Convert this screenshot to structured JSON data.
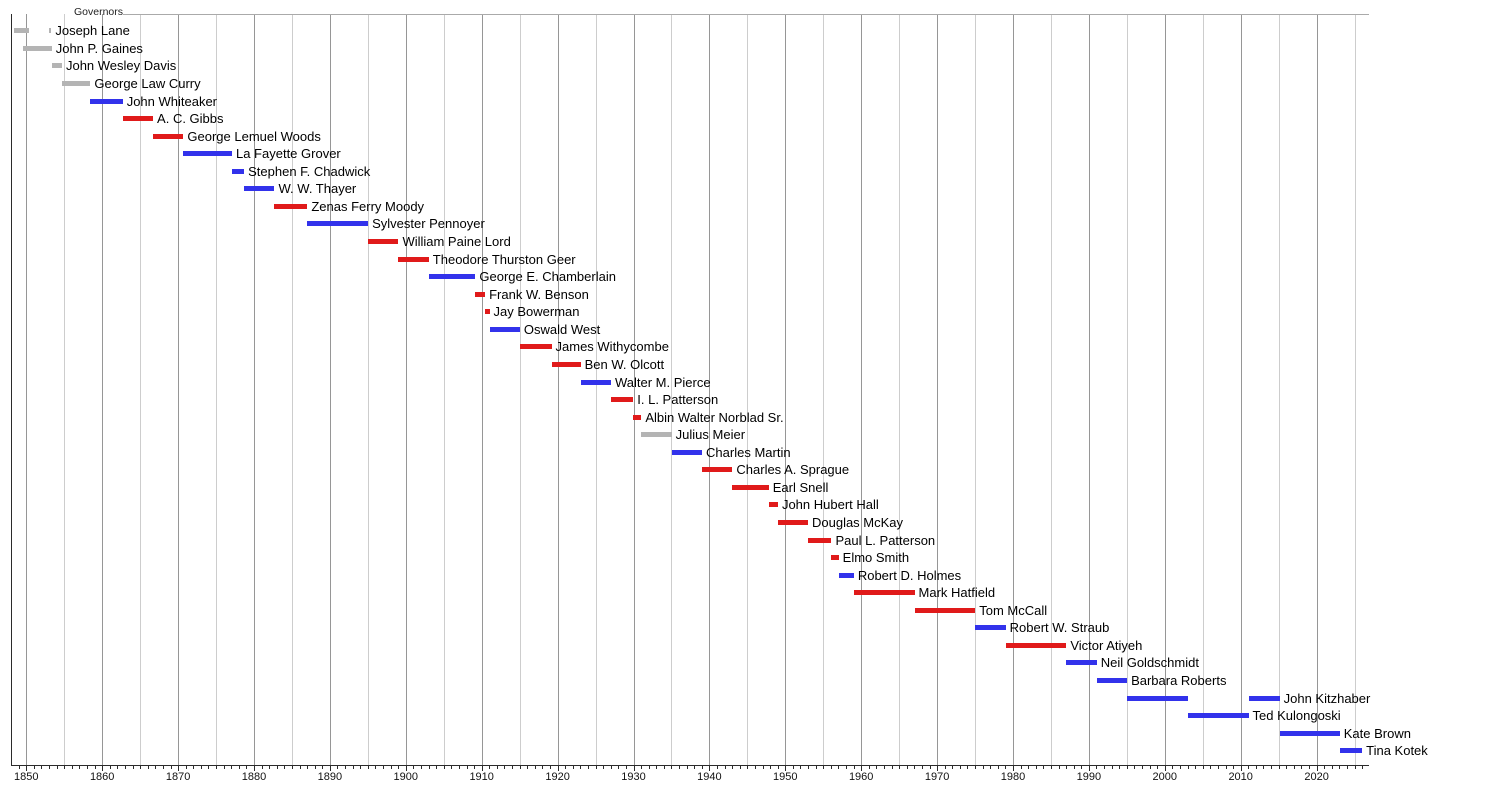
{
  "chart_data": {
    "type": "timeline",
    "title": "Governors",
    "x_axis": {
      "min_year": 1848,
      "max_year": 2027,
      "grid_interval_years": 5,
      "tick_label_years": [
        1850,
        1860,
        1870,
        1880,
        1890,
        1900,
        1910,
        1920,
        1930,
        1940,
        1950,
        1960,
        1970,
        1980,
        1990,
        2000,
        2010,
        2020
      ]
    },
    "legend_note": "bar color encodes party",
    "governors": [
      {
        "name": "Joseph Lane",
        "party": "unaffiliated",
        "terms": [
          [
            1848.35,
            1850.3
          ],
          [
            1853.0,
            1853.3
          ]
        ]
      },
      {
        "name": "John P. Gaines",
        "party": "unaffiliated",
        "terms": [
          [
            1849.6,
            1853.35
          ]
        ]
      },
      {
        "name": "John Wesley Davis",
        "party": "unaffiliated",
        "terms": [
          [
            1853.35,
            1854.7
          ]
        ]
      },
      {
        "name": "George Law Curry",
        "party": "unaffiliated",
        "terms": [
          [
            1854.7,
            1858.45
          ]
        ]
      },
      {
        "name": "John Whiteaker",
        "party": "democratic",
        "terms": [
          [
            1858.45,
            1862.7
          ]
        ]
      },
      {
        "name": "A. C. Gibbs",
        "party": "republican",
        "terms": [
          [
            1862.7,
            1866.7
          ]
        ]
      },
      {
        "name": "George Lemuel Woods",
        "party": "republican",
        "terms": [
          [
            1866.7,
            1870.7
          ]
        ]
      },
      {
        "name": "La Fayette Grover",
        "party": "democratic",
        "terms": [
          [
            1870.7,
            1877.1
          ]
        ]
      },
      {
        "name": "Stephen F. Chadwick",
        "party": "democratic",
        "terms": [
          [
            1877.1,
            1878.7
          ]
        ]
      },
      {
        "name": "W. W. Thayer",
        "party": "democratic",
        "terms": [
          [
            1878.7,
            1882.7
          ]
        ]
      },
      {
        "name": "Zenas Ferry Moody",
        "party": "republican",
        "terms": [
          [
            1882.7,
            1887.03
          ]
        ]
      },
      {
        "name": "Sylvester Pennoyer",
        "party": "democratic",
        "terms": [
          [
            1887.03,
            1895.03
          ]
        ]
      },
      {
        "name": "William Paine Lord",
        "party": "republican",
        "terms": [
          [
            1895.03,
            1899.03
          ]
        ]
      },
      {
        "name": "Theodore Thurston Geer",
        "party": "republican",
        "terms": [
          [
            1899.03,
            1903.03
          ]
        ]
      },
      {
        "name": "George E. Chamberlain",
        "party": "democratic",
        "terms": [
          [
            1903.03,
            1909.17
          ]
        ]
      },
      {
        "name": "Frank W. Benson",
        "party": "republican",
        "terms": [
          [
            1909.17,
            1910.45
          ]
        ]
      },
      {
        "name": "Jay Bowerman",
        "party": "republican",
        "terms": [
          [
            1910.45,
            1911.03
          ]
        ]
      },
      {
        "name": "Oswald West",
        "party": "democratic",
        "terms": [
          [
            1911.03,
            1915.03
          ]
        ]
      },
      {
        "name": "James Withycombe",
        "party": "republican",
        "terms": [
          [
            1915.03,
            1919.2
          ]
        ]
      },
      {
        "name": "Ben W. Olcott",
        "party": "republican",
        "terms": [
          [
            1919.2,
            1923.03
          ]
        ]
      },
      {
        "name": "Walter M. Pierce",
        "party": "democratic",
        "terms": [
          [
            1923.03,
            1927.03
          ]
        ]
      },
      {
        "name": "I. L. Patterson",
        "party": "republican",
        "terms": [
          [
            1927.03,
            1929.97
          ]
        ]
      },
      {
        "name": "Albin Walter Norblad Sr.",
        "party": "republican",
        "terms": [
          [
            1929.97,
            1931.03
          ]
        ]
      },
      {
        "name": "Julius Meier",
        "party": "unaffiliated",
        "terms": [
          [
            1931.03,
            1935.03
          ]
        ]
      },
      {
        "name": "Charles Martin",
        "party": "democratic",
        "terms": [
          [
            1935.03,
            1939.03
          ]
        ]
      },
      {
        "name": "Charles A. Sprague",
        "party": "republican",
        "terms": [
          [
            1939.03,
            1943.03
          ]
        ]
      },
      {
        "name": "Earl Snell",
        "party": "republican",
        "terms": [
          [
            1943.03,
            1947.82
          ]
        ]
      },
      {
        "name": "John Hubert Hall",
        "party": "republican",
        "terms": [
          [
            1947.82,
            1949.03
          ]
        ]
      },
      {
        "name": "Douglas McKay",
        "party": "republican",
        "terms": [
          [
            1949.03,
            1952.99
          ]
        ]
      },
      {
        "name": "Paul L. Patterson",
        "party": "republican",
        "terms": [
          [
            1952.99,
            1956.08
          ]
        ]
      },
      {
        "name": "Elmo Smith",
        "party": "republican",
        "terms": [
          [
            1956.08,
            1957.03
          ]
        ]
      },
      {
        "name": "Robert D. Holmes",
        "party": "democratic",
        "terms": [
          [
            1957.03,
            1959.03
          ]
        ]
      },
      {
        "name": "Mark Hatfield",
        "party": "republican",
        "terms": [
          [
            1959.03,
            1967.03
          ]
        ]
      },
      {
        "name": "Tom McCall",
        "party": "republican",
        "terms": [
          [
            1967.03,
            1975.03
          ]
        ]
      },
      {
        "name": "Robert W. Straub",
        "party": "democratic",
        "terms": [
          [
            1975.03,
            1979.03
          ]
        ]
      },
      {
        "name": "Victor Atiyeh",
        "party": "republican",
        "terms": [
          [
            1979.03,
            1987.03
          ]
        ]
      },
      {
        "name": "Neil Goldschmidt",
        "party": "democratic",
        "terms": [
          [
            1987.03,
            1991.03
          ]
        ]
      },
      {
        "name": "Barbara Roberts",
        "party": "democratic",
        "terms": [
          [
            1991.03,
            1995.03
          ]
        ]
      },
      {
        "name": "John Kitzhaber",
        "party": "democratic",
        "terms": [
          [
            1995.03,
            2003.03
          ],
          [
            2011.03,
            2015.13
          ]
        ]
      },
      {
        "name": "Ted Kulongoski",
        "party": "democratic",
        "terms": [
          [
            2003.03,
            2011.03
          ]
        ]
      },
      {
        "name": "Kate Brown",
        "party": "democratic",
        "terms": [
          [
            2015.13,
            2023.05
          ]
        ]
      },
      {
        "name": "Tina Kotek",
        "party": "democratic",
        "terms": [
          [
            2023.05,
            2026.0
          ]
        ]
      }
    ]
  },
  "colors": {
    "republican": "#E01A1A",
    "democratic": "#3232EB",
    "unaffiliated": "#B4B4B4",
    "grid_decade": "#969696",
    "grid_minor": "#CDCDCD",
    "frame_top": "#AAAAAA",
    "axis": "#2B2B2B"
  }
}
